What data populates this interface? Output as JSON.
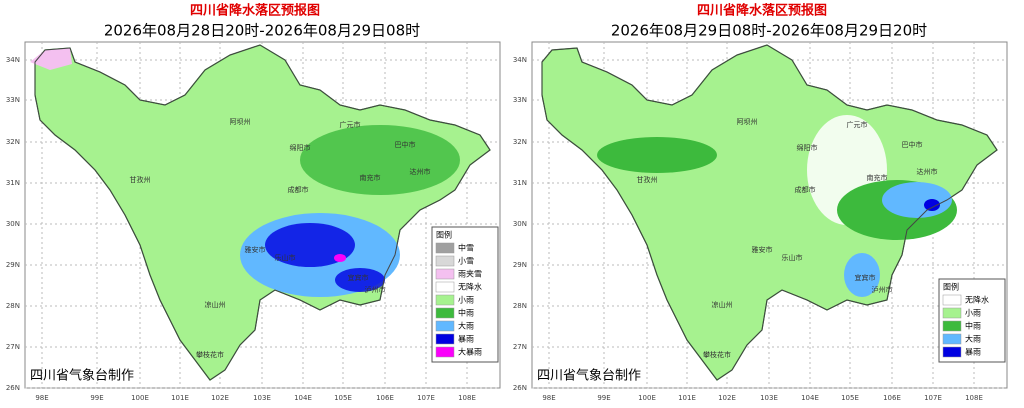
{
  "panels": [
    {
      "title": "四川省降水落区预报图",
      "subtitle": "2026年08月28日20时-2026年08月29日08时",
      "lat_labels": [
        "34N",
        "33N",
        "32N",
        "31N",
        "30N",
        "29N",
        "28N",
        "27N",
        "26N"
      ],
      "lon_labels": [
        "98E",
        "99E",
        "100E",
        "101E",
        "102E",
        "103E",
        "104E",
        "105E",
        "106E",
        "107E",
        "108E"
      ],
      "legend": {
        "title": "图例",
        "items": [
          {
            "label": "中雪",
            "color": "#a0a0a0"
          },
          {
            "label": "小雪",
            "color": "#d8d8d8"
          },
          {
            "label": "雨夹雪",
            "color": "#f4c0f0"
          },
          {
            "label": "无降水",
            "color": "#ffffff"
          },
          {
            "label": "小雨",
            "color": "#a6f28f"
          },
          {
            "label": "中雨",
            "color": "#3dba3d"
          },
          {
            "label": "大雨",
            "color": "#61b8ff"
          },
          {
            "label": "暴雨",
            "color": "#0000e1"
          },
          {
            "label": "大暴雨",
            "color": "#fa00fa"
          }
        ]
      },
      "cities": [
        "阿坝州",
        "绵阳市",
        "广元市",
        "巴中市",
        "达州市",
        "南充市",
        "成都市",
        "甘孜州",
        "雅安市",
        "乐山市",
        "凉山州",
        "攀枝花市",
        "宜宾市",
        "泸州市"
      ],
      "credit": "四川省气象台制作"
    },
    {
      "title": "四川省降水落区预报图",
      "subtitle": "2026年08月29日08时-2026年08月29日20时",
      "lat_labels": [
        "34N",
        "33N",
        "32N",
        "31N",
        "30N",
        "29N",
        "28N",
        "27N",
        "26N"
      ],
      "lon_labels": [
        "98E",
        "99E",
        "100E",
        "101E",
        "102E",
        "103E",
        "104E",
        "105E",
        "106E",
        "107E",
        "108E"
      ],
      "legend": {
        "title": "图例",
        "items": [
          {
            "label": "无降水",
            "color": "#ffffff"
          },
          {
            "label": "小雨",
            "color": "#a6f28f"
          },
          {
            "label": "中雨",
            "color": "#3dba3d"
          },
          {
            "label": "大雨",
            "color": "#61b8ff"
          },
          {
            "label": "暴雨",
            "color": "#0000e1"
          }
        ]
      },
      "cities": [
        "阿坝州",
        "绵阳市",
        "广元市",
        "巴中市",
        "达州市",
        "南充市",
        "成都市",
        "甘孜州",
        "雅安市",
        "乐山市",
        "凉山州",
        "攀枝花市",
        "宜宾市",
        "泸州市"
      ],
      "credit": "四川省气象台制作"
    }
  ]
}
